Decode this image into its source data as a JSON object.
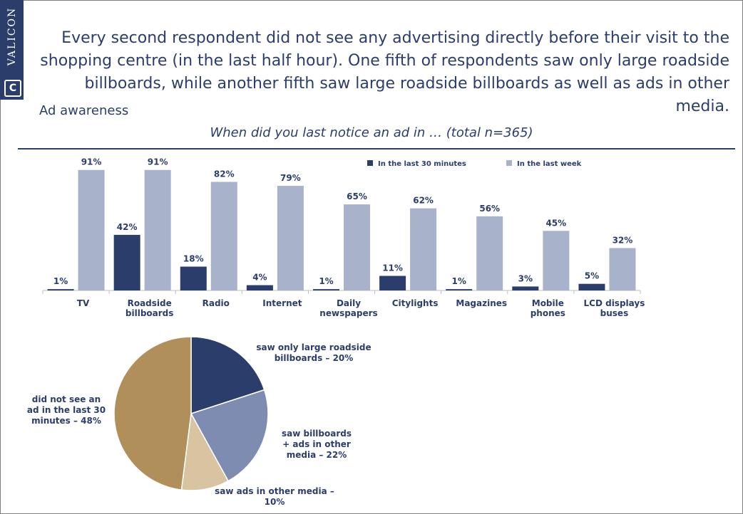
{
  "brand": {
    "name": "VALICON",
    "logo_letter": "C"
  },
  "headline": "Every second respondent did not see any advertising directly before their visit to the shopping centre (in the last half hour). One fifth of respondents saw only large roadside billboards, while another fifth saw large roadside billboards as well as ads in other media.",
  "section_title": "Ad awareness",
  "question": "When did you last notice an ad in … (total n=365)",
  "colors": {
    "dark": "#2b3d6b",
    "light": "#a9b2cb",
    "pie_billboards_other": "#7f8cb1",
    "pie_other_media": "#d8c4a0",
    "pie_none": "#b08f5a"
  },
  "chart_data": [
    {
      "type": "bar",
      "categories": [
        "TV",
        "Roadside billboards",
        "Radio",
        "Internet",
        "Daily newspapers",
        "Citylights",
        "Magazines",
        "Mobile phones",
        "LCD displays buses"
      ],
      "category_lines": [
        [
          "TV"
        ],
        [
          "Roadside",
          "billboards"
        ],
        [
          "Radio"
        ],
        [
          "Internet"
        ],
        [
          "Daily",
          "newspapers"
        ],
        [
          "Citylights"
        ],
        [
          "Magazines"
        ],
        [
          "Mobile",
          "phones"
        ],
        [
          "LCD displays",
          "buses"
        ]
      ],
      "series": [
        {
          "name": "In the last 30 minutes",
          "color": "#2b3d6b",
          "values": [
            1,
            42,
            18,
            4,
            1,
            11,
            1,
            3,
            5
          ]
        },
        {
          "name": "In the last week",
          "color": "#a9b2cb",
          "values": [
            91,
            91,
            82,
            79,
            65,
            62,
            56,
            45,
            32
          ]
        }
      ],
      "unit": "%",
      "ylim": [
        0,
        100
      ],
      "legend": "top-right",
      "grid": false
    },
    {
      "type": "pie",
      "slices": [
        {
          "label": "saw only large roadside billboards – 20%",
          "value": 20,
          "color": "#2b3d6b"
        },
        {
          "label": "saw billboards + ads in other media – 22%",
          "value": 22,
          "color": "#7f8cb1"
        },
        {
          "label": "saw ads in other media – 10%",
          "value": 10,
          "color": "#d8c4a0"
        },
        {
          "label": "did not see an ad in the last 30 minutes – 48%",
          "value": 48,
          "color": "#b08f5a"
        }
      ],
      "label_lines": [
        [
          "saw only large roadside",
          "billboards – 20%"
        ],
        [
          "saw billboards",
          "+ ads in other",
          "media – 22%"
        ],
        [
          "saw ads in other media –",
          "10%"
        ],
        [
          "did not see an",
          "ad in the last 30",
          "minutes – 48%"
        ]
      ]
    }
  ]
}
